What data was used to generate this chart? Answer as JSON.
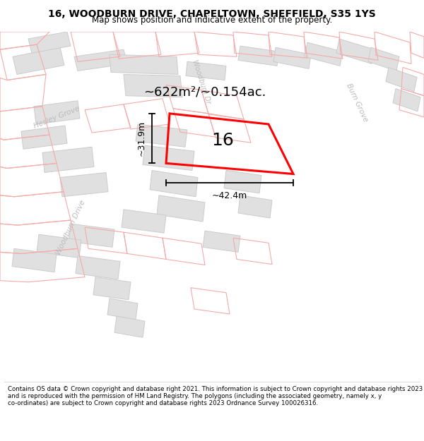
{
  "title": "16, WOODBURN DRIVE, CHAPELTOWN, SHEFFIELD, S35 1YS",
  "subtitle": "Map shows position and indicative extent of the property.",
  "footer": "Contains OS data © Crown copyright and database right 2021. This information is subject to Crown copyright and database rights 2023 and is reproduced with the permission of HM Land Registry. The polygons (including the associated geometry, namely x, y co-ordinates) are subject to Crown copyright and database rights 2023 Ordnance Survey 100026316.",
  "area_label": "~622m²/~0.154ac.",
  "number_label": "16",
  "width_label": "~42.4m",
  "height_label": "~31.9m",
  "map_bg": "#ffffff",
  "building_fill": "#e0e0e0",
  "building_stroke": "#cccccc",
  "red_line_color": "#ff0000",
  "pink_line_color": "#f5aaaa",
  "road_label_color": "#bbbbbb",
  "title_fontsize": 10,
  "subtitle_fontsize": 8.5,
  "footer_fontsize": 6.2
}
